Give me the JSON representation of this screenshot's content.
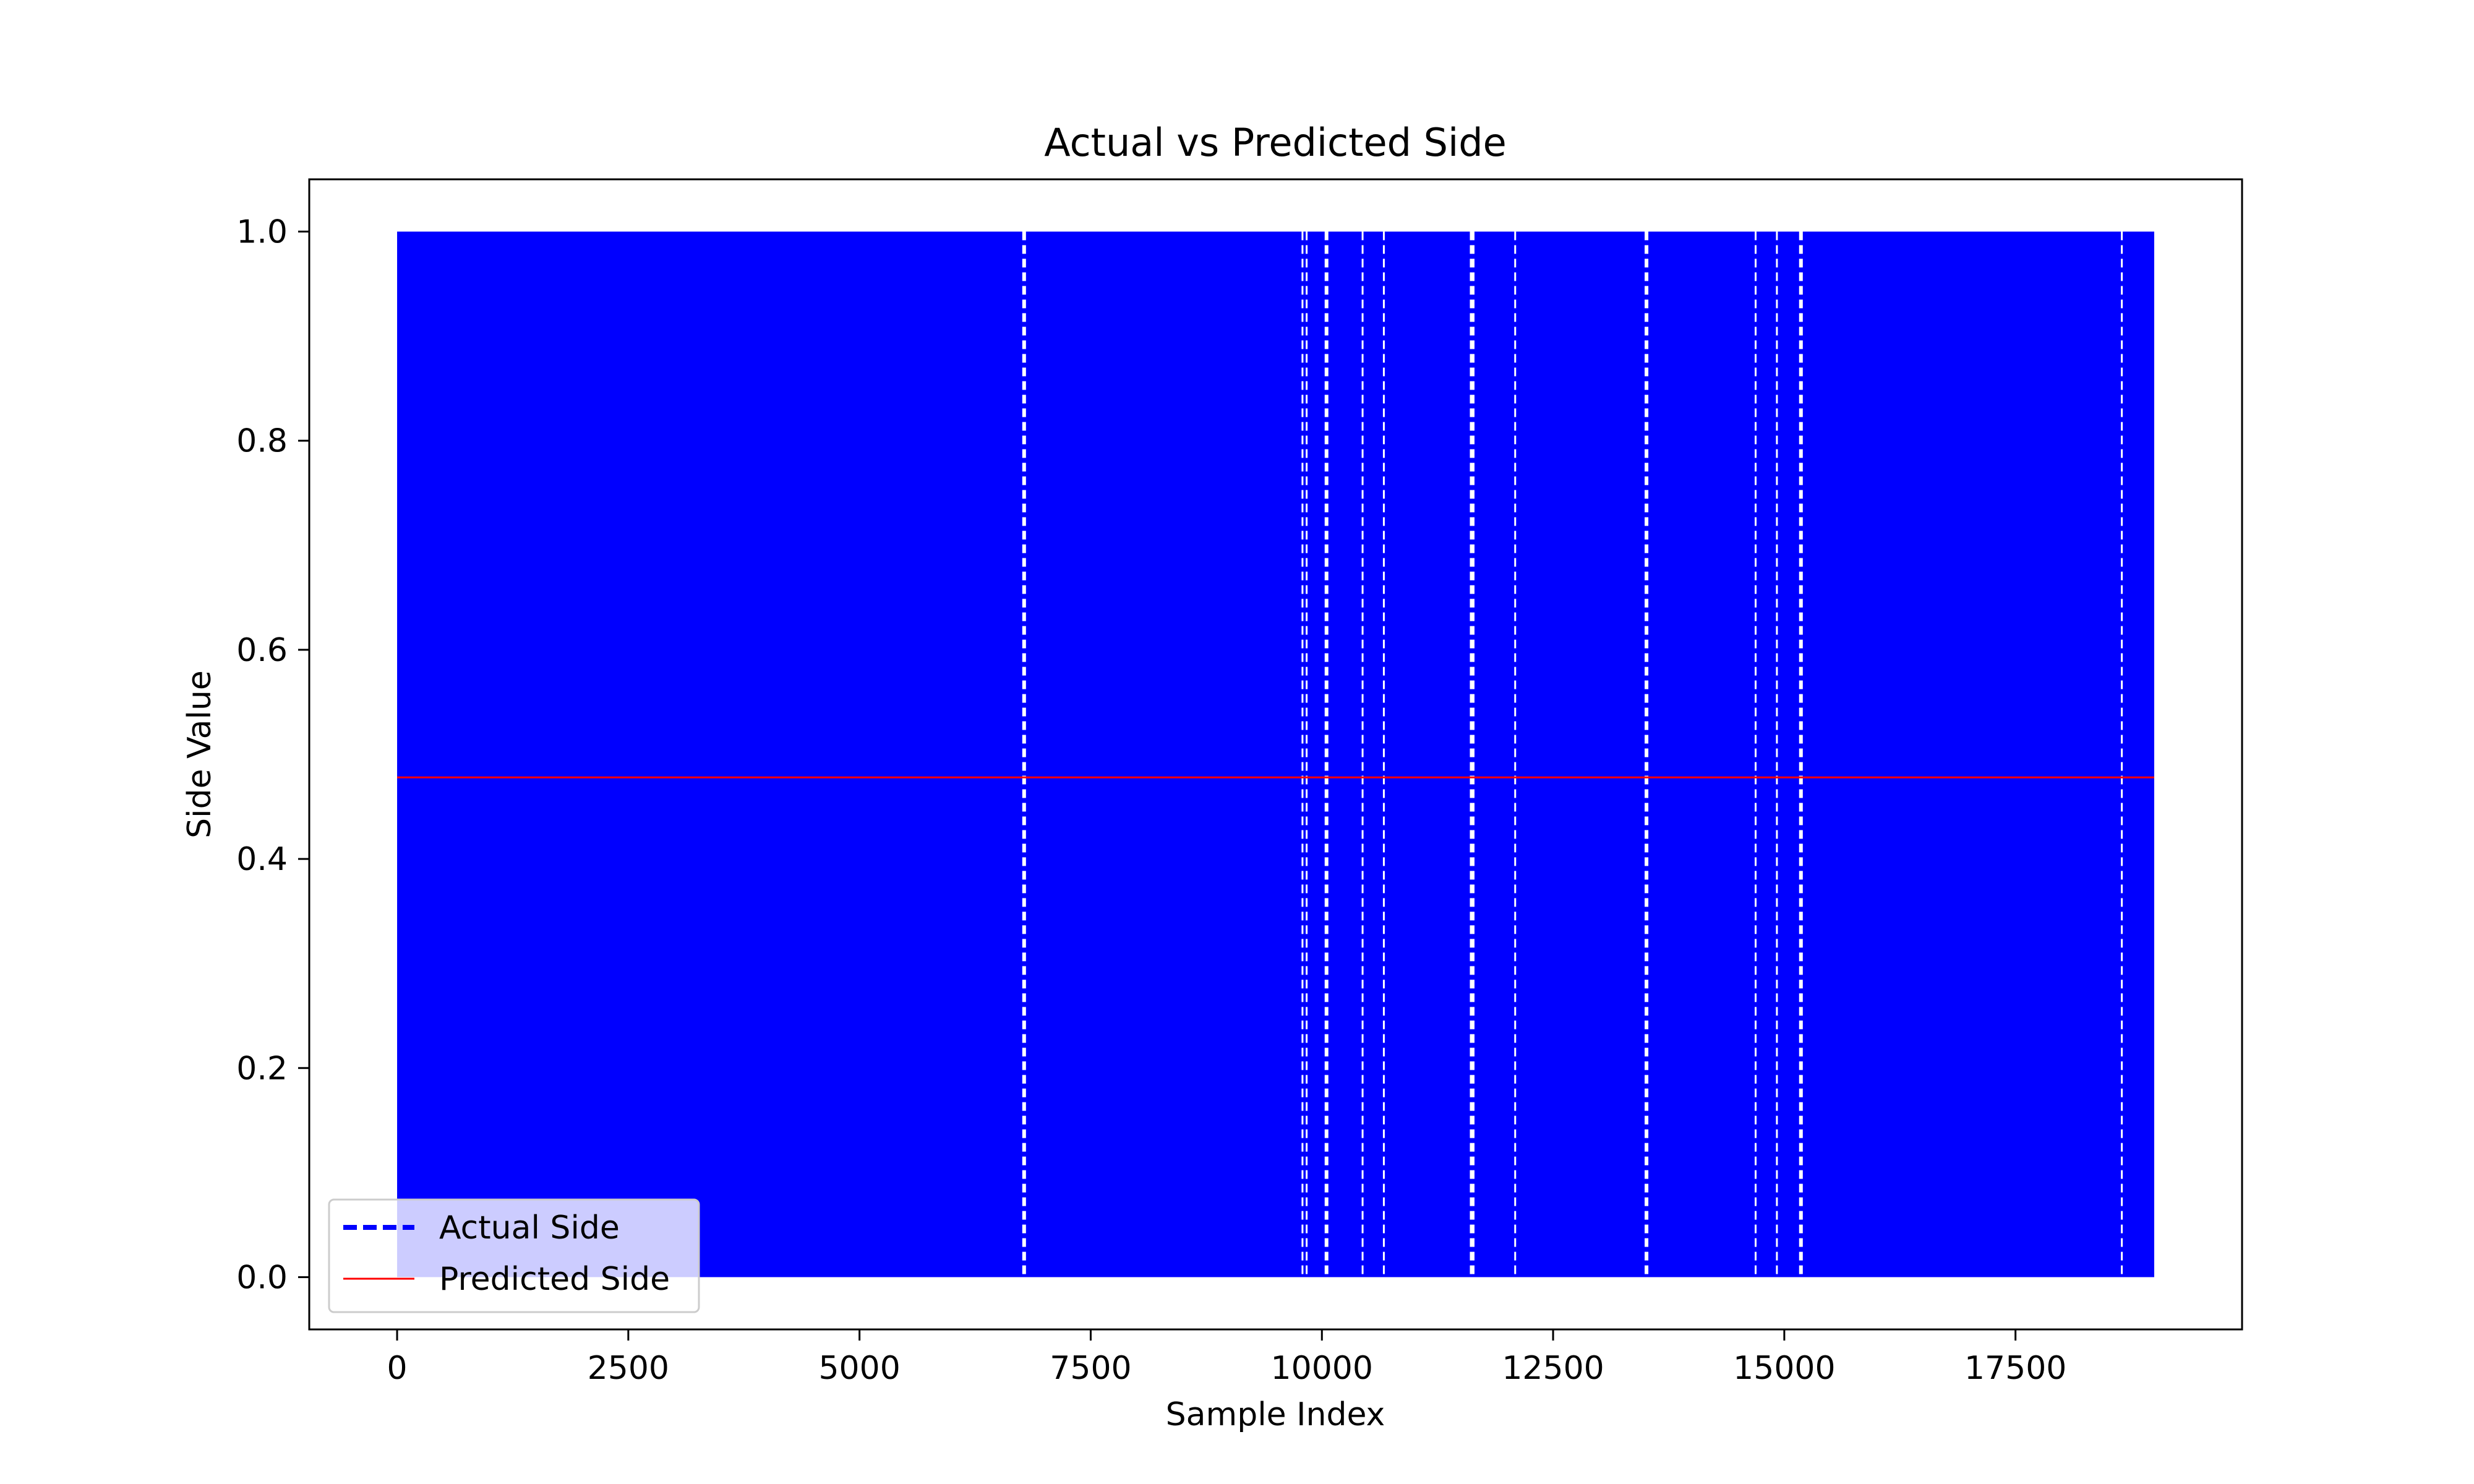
{
  "chart_data": {
    "type": "line",
    "title": "Actual vs Predicted Side",
    "xlabel": "Sample Index",
    "ylabel": "Side Value",
    "xlim": [
      -950,
      19950
    ],
    "ylim": [
      -0.05,
      1.05
    ],
    "x_ticks": [
      0,
      2500,
      5000,
      7500,
      10000,
      12500,
      15000,
      17500
    ],
    "x_tick_labels": [
      "0",
      "2500",
      "5000",
      "7500",
      "10000",
      "12500",
      "15000",
      "17500"
    ],
    "y_ticks": [
      0.0,
      0.2,
      0.4,
      0.6,
      0.8,
      1.0
    ],
    "y_tick_labels": [
      "0.0",
      "0.2",
      "0.4",
      "0.6",
      "0.8",
      "1.0"
    ],
    "grid": false,
    "legend_position": "lower-left",
    "series": [
      {
        "name": "Actual Side",
        "color": "#0000ff",
        "style": "dashed",
        "description_values": "binary 0/1 signal oscillating across all samples",
        "x_range": [
          0,
          19000
        ],
        "values_range": [
          0,
          1
        ],
        "gap_positions": [
          6780,
          9790,
          9835,
          10050,
          10440,
          10670,
          11620,
          11640,
          12090,
          13510,
          14690,
          14920,
          15180,
          18650
        ]
      },
      {
        "name": "Predicted Side",
        "color": "#ff0000",
        "style": "solid",
        "x_range": [
          0,
          19000
        ],
        "constant_value": 0.478
      }
    ]
  }
}
